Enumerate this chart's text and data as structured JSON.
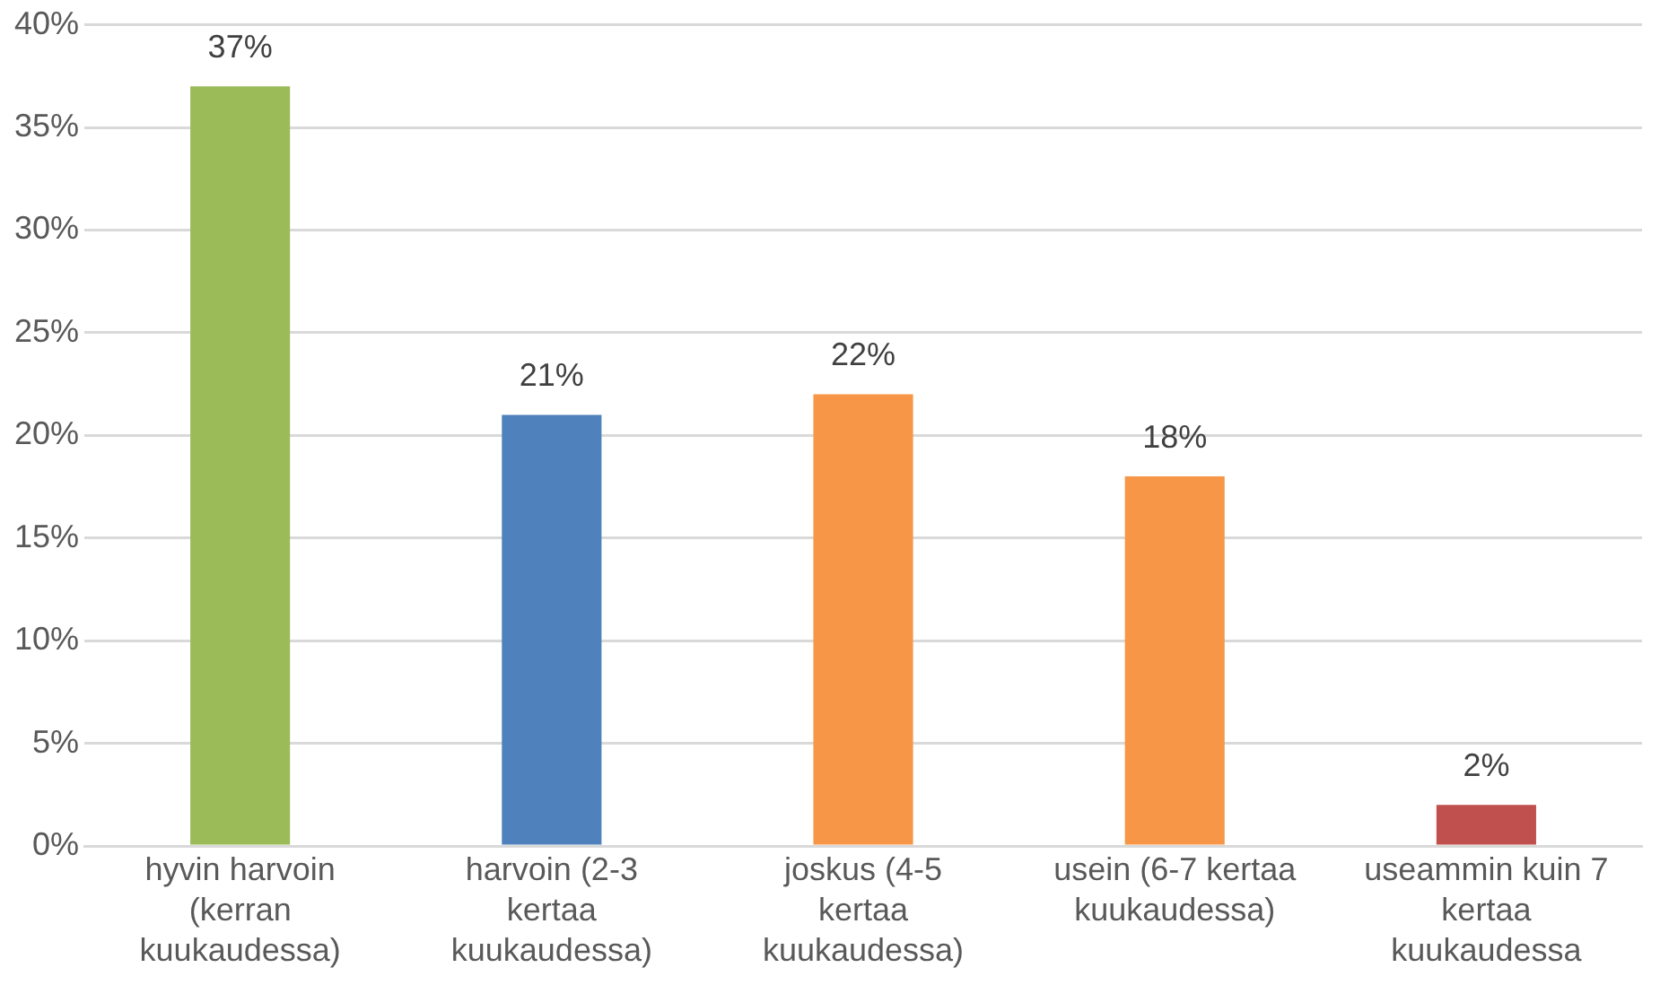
{
  "chart_data": {
    "type": "bar",
    "categories": [
      "hyvin harvoin (kerran kuukaudessa)",
      "harvoin (2-3 kertaa kuukaudessa)",
      "joskus (4-5 kertaa kuukaudessa)",
      "usein (6-7 kertaa kuukaudessa)",
      "useammin kuin 7 kertaa kuukaudessa"
    ],
    "values": [
      37,
      21,
      22,
      18,
      2
    ],
    "colors": [
      "#9bbb59",
      "#4f81bd",
      "#f79646",
      "#f79646",
      "#c0504d"
    ],
    "value_labels": [
      "37%",
      "21%",
      "22%",
      "18%",
      "2%"
    ],
    "ylim": [
      0,
      40
    ],
    "yticks": [
      {
        "value": 0,
        "label": "0%"
      },
      {
        "value": 5,
        "label": "5%"
      },
      {
        "value": 10,
        "label": "10%"
      },
      {
        "value": 15,
        "label": "15%"
      },
      {
        "value": 20,
        "label": "20%"
      },
      {
        "value": 25,
        "label": "25%"
      },
      {
        "value": 30,
        "label": "30%"
      },
      {
        "value": 35,
        "label": "35%"
      },
      {
        "value": 40,
        "label": "40%"
      }
    ],
    "grid": "y"
  }
}
